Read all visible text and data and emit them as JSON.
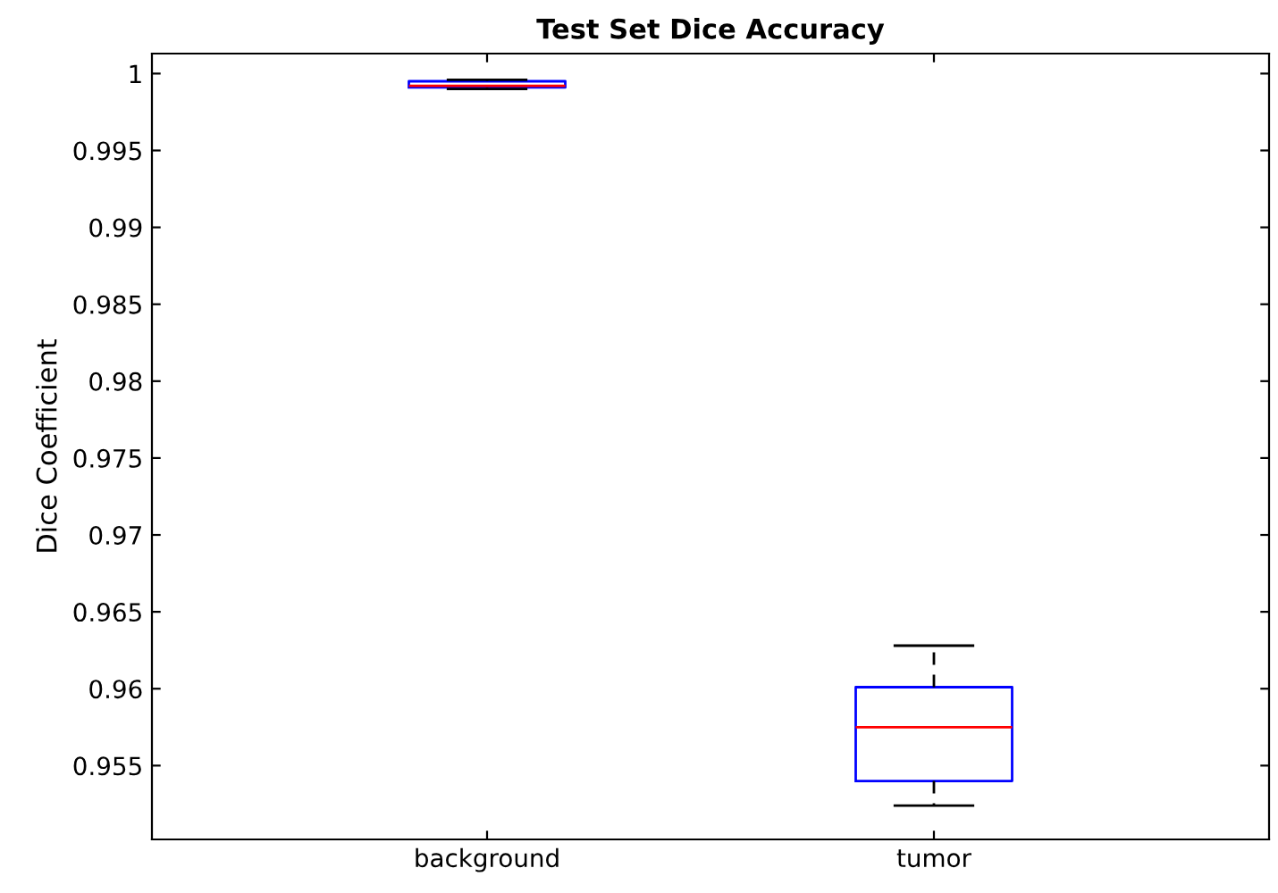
{
  "chart_data": {
    "type": "box",
    "title": "Test Set Dice Accuracy",
    "ylabel": "Dice Coefficient",
    "categories": [
      "background",
      "tumor"
    ],
    "boxes": [
      {
        "low": 0.999,
        "q1": 0.9991,
        "median": 0.9992,
        "q3": 0.9995,
        "high": 0.9996
      },
      {
        "low": 0.9524,
        "q1": 0.954,
        "median": 0.9575,
        "q3": 0.9601,
        "high": 0.9628
      }
    ],
    "color": "#0000ff",
    "ylim": [
      0.9502,
      1.0013
    ],
    "yticks": [
      0.955,
      0.96,
      0.965,
      0.97,
      0.975,
      0.98,
      0.985,
      0.99,
      0.995,
      1
    ],
    "grid": false
  }
}
